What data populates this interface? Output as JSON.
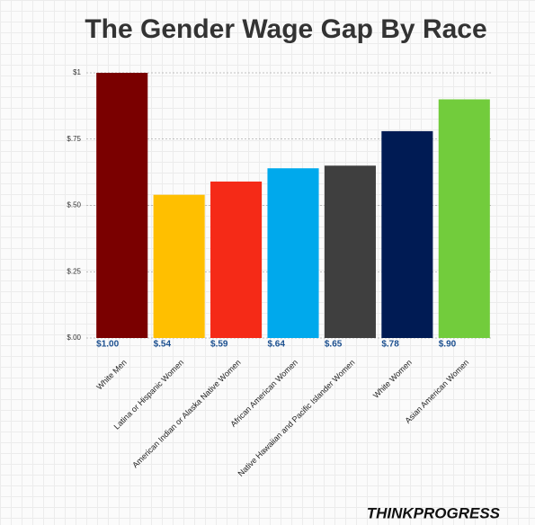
{
  "chart_data": {
    "type": "bar",
    "title": "The Gender Wage Gap By Race",
    "source": "THINKPROGRESS",
    "categories": [
      "White Men",
      "Latina or Hispanic Women",
      "American Indian or Alaska Native Women",
      "African American Women",
      "Native Hawaiian and Pacific Islander Women",
      "White Women",
      "Asian American Women"
    ],
    "values": [
      1.0,
      0.54,
      0.59,
      0.64,
      0.65,
      0.78,
      0.9
    ],
    "value_labels": [
      "$1.00",
      "$.54",
      "$.59",
      "$.64",
      "$.65",
      "$.78",
      "$.90"
    ],
    "colors": [
      "#7a0000",
      "#ffbf00",
      "#f52a17",
      "#00a9ec",
      "#3f3f3f",
      "#001b54",
      "#72cc3c"
    ],
    "ylim": [
      0,
      1
    ],
    "yticks": [
      {
        "value": 0,
        "label": "$.00"
      },
      {
        "value": 0.25,
        "label": "$.25"
      },
      {
        "value": 0.5,
        "label": "$.50"
      },
      {
        "value": 0.75,
        "label": "$.75"
      },
      {
        "value": 1,
        "label": "$1"
      }
    ],
    "grid": true
  }
}
